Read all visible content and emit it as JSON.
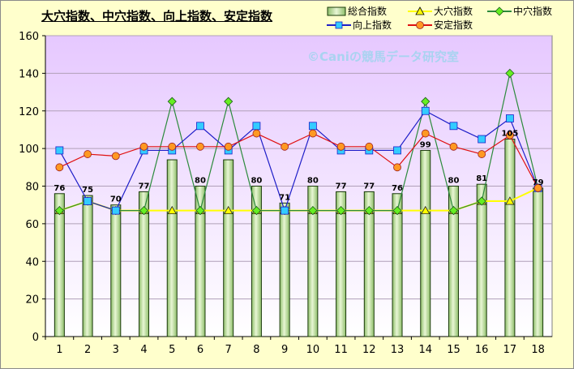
{
  "title": "大穴指数、中穴指数、向上指数、安定指数",
  "watermark": "©Caniの競馬データ研究室",
  "colors": {
    "background": "#ffffcc",
    "plot_top": "#e6c8ff",
    "plot_bottom": "#ffffff",
    "bar_fill_light": "#e8f6d4",
    "bar_fill_dark": "#8ebe6a",
    "bar_border": "#1a3a0a",
    "daiana": "#ffff00",
    "chuana": "#2c8a3c",
    "koujou": "#1e1ec8",
    "antei": "#e01010",
    "koujou_marker": "#33ccff",
    "antei_marker": "#ff9922"
  },
  "chart_data": {
    "type": "bar",
    "categories": [
      "1",
      "2",
      "3",
      "4",
      "5",
      "6",
      "7",
      "8",
      "9",
      "10",
      "11",
      "12",
      "13",
      "14",
      "15",
      "16",
      "17",
      "18"
    ],
    "ylim": [
      0,
      160
    ],
    "yticks": [
      0,
      20,
      40,
      60,
      80,
      100,
      120,
      140,
      160
    ],
    "grid": "horizontal",
    "legend_position": "top-right",
    "series": [
      {
        "name": "総合指数",
        "kind": "bar",
        "values": [
          76,
          75,
          70,
          77,
          94,
          80,
          94,
          80,
          71,
          80,
          77,
          77,
          76,
          99,
          80,
          81,
          105,
          79
        ],
        "labels": [
          "76",
          "75",
          "70",
          "77",
          "",
          "80",
          "",
          "80",
          "71",
          "80",
          "77",
          "77",
          "76",
          "99",
          "80",
          "81",
          "105",
          "79"
        ]
      },
      {
        "name": "大穴指数",
        "kind": "line",
        "marker": "triangle",
        "values": [
          67,
          72,
          67,
          67,
          67,
          67,
          67,
          67,
          67,
          67,
          67,
          67,
          67,
          67,
          67,
          72,
          72,
          79
        ]
      },
      {
        "name": "中穴指数",
        "kind": "line",
        "marker": "diamond",
        "values": [
          67,
          72,
          67,
          67,
          125,
          67,
          125,
          67,
          67,
          67,
          67,
          67,
          67,
          125,
          67,
          72,
          140,
          79
        ]
      },
      {
        "name": "向上指数",
        "kind": "line",
        "marker": "square",
        "values": [
          99,
          72,
          67,
          99,
          99,
          112,
          99,
          112,
          67,
          112,
          99,
          99,
          99,
          120,
          112,
          105,
          116,
          79
        ]
      },
      {
        "name": "安定指数",
        "kind": "line",
        "marker": "circle",
        "values": [
          90,
          97,
          96,
          101,
          101,
          101,
          101,
          108,
          101,
          108,
          101,
          101,
          90,
          108,
          101,
          97,
          107,
          79
        ]
      }
    ]
  }
}
